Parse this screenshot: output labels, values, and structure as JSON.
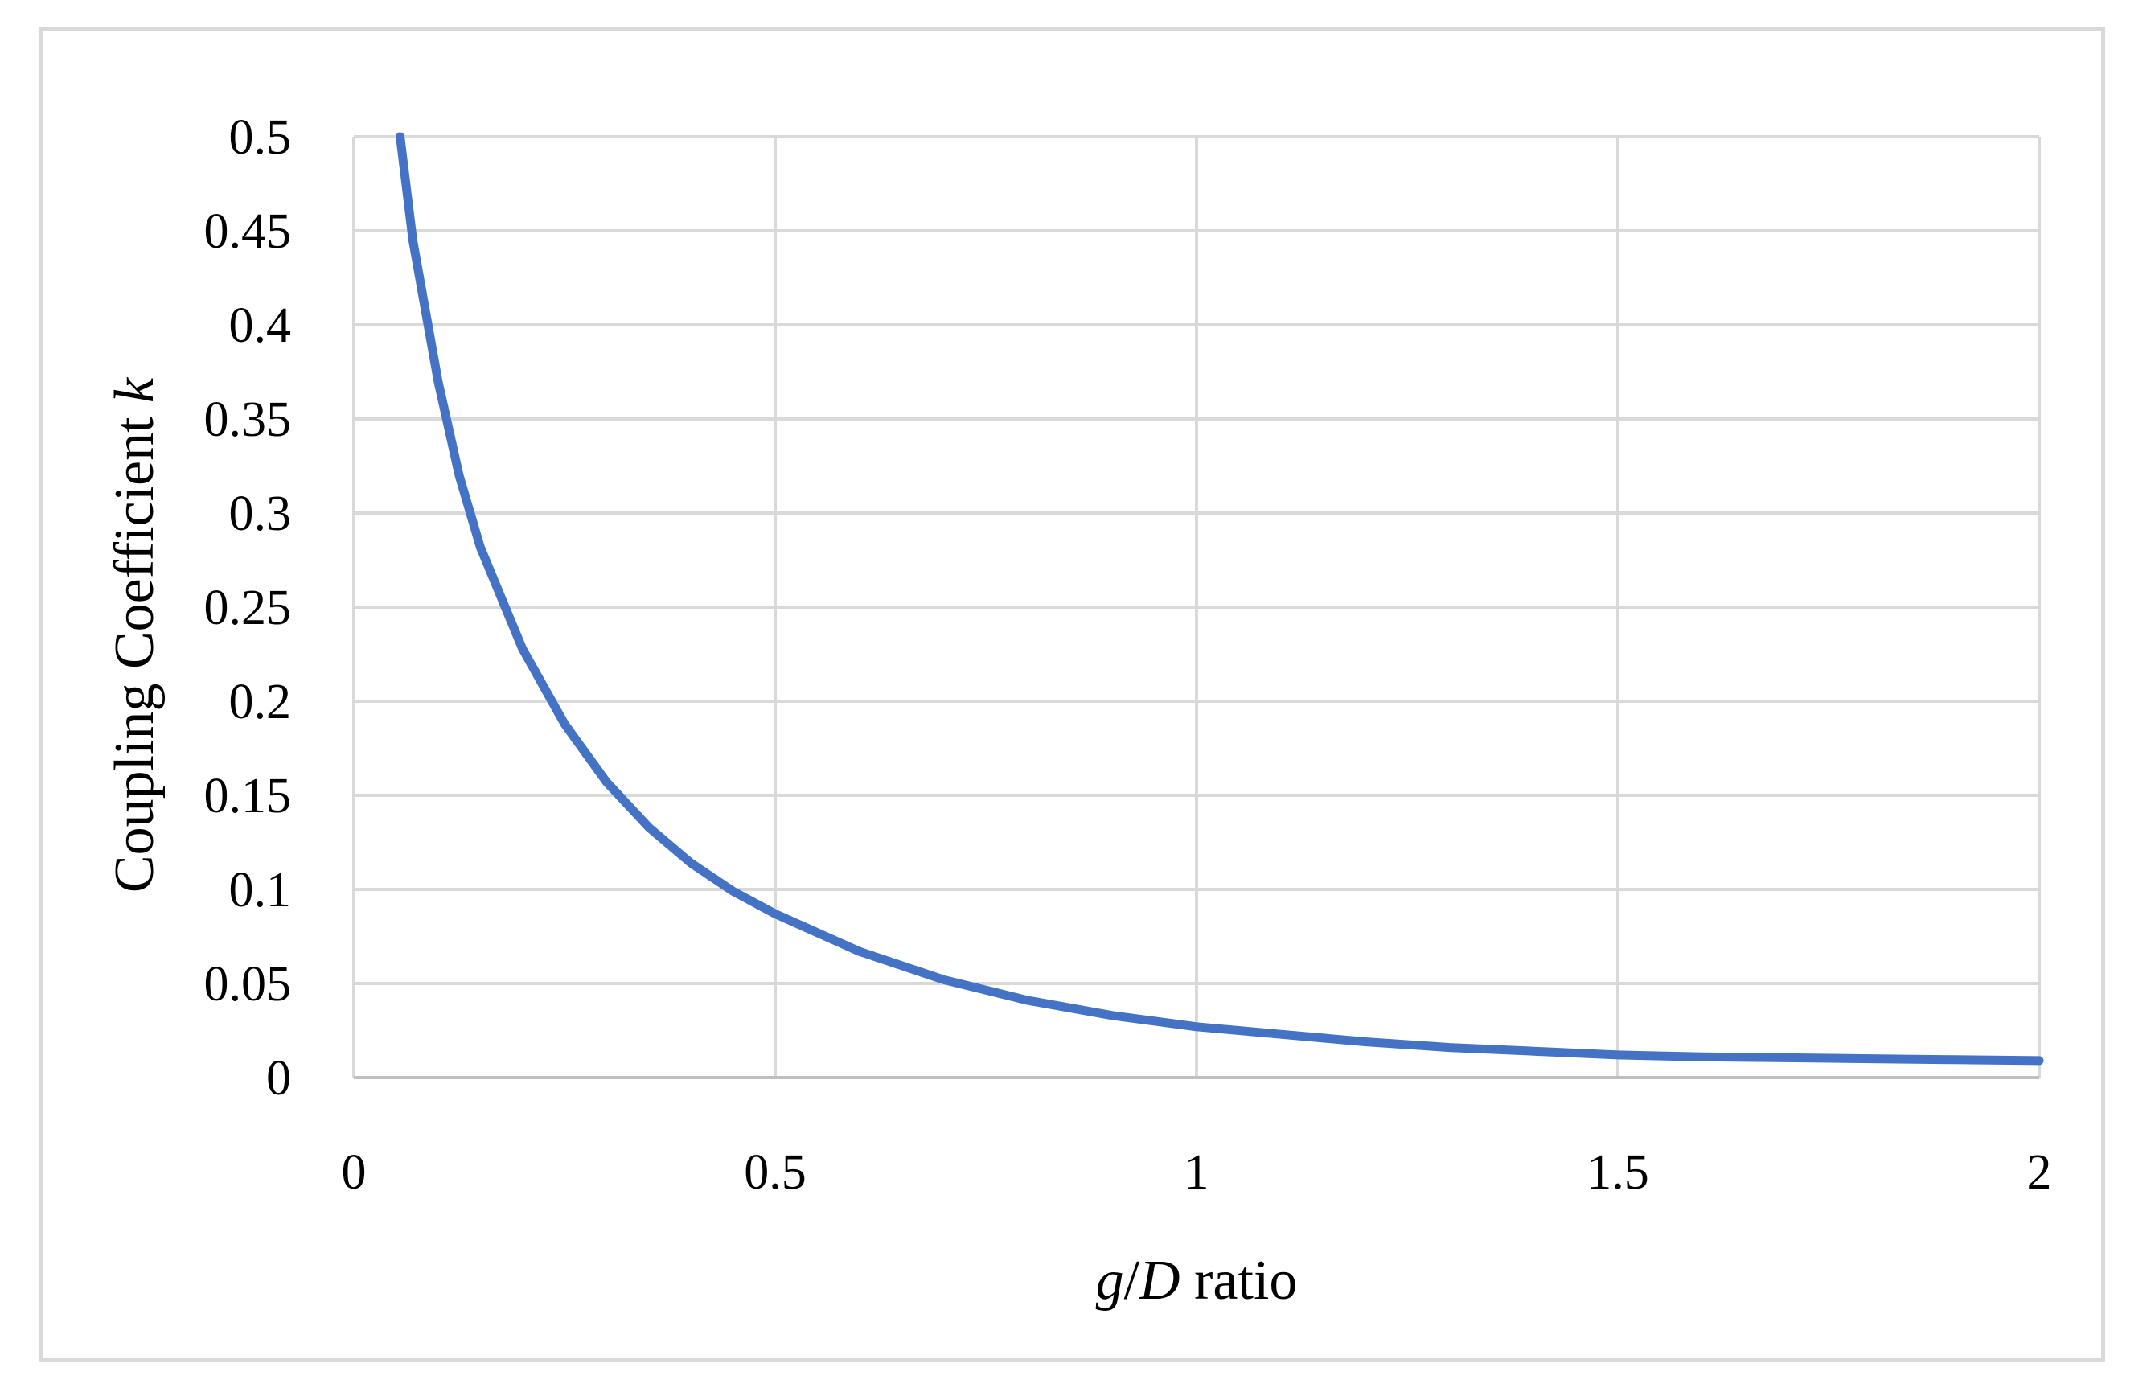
{
  "chart_data": {
    "type": "line",
    "title": "",
    "xlabel_parts": [
      {
        "text": "g",
        "italic": true
      },
      {
        "text": "/",
        "italic": false
      },
      {
        "text": "D",
        "italic": true
      },
      {
        "text": " ratio",
        "italic": false
      }
    ],
    "ylabel_parts": [
      {
        "text": "Coupling Coefficient ",
        "italic": false
      },
      {
        "text": "k",
        "italic": true
      }
    ],
    "xlim": [
      0,
      2
    ],
    "ylim": [
      0,
      0.5
    ],
    "xticks": [
      0,
      0.5,
      1,
      1.5,
      2
    ],
    "xtick_labels": [
      "0",
      "0.5",
      "1",
      "1.5",
      "2"
    ],
    "yticks": [
      0,
      0.05,
      0.1,
      0.15,
      0.2,
      0.25,
      0.3,
      0.35,
      0.4,
      0.45,
      0.5
    ],
    "ytick_labels": [
      "0",
      "0.05",
      "0.1",
      "0.15",
      "0.2",
      "0.25",
      "0.3",
      "0.35",
      "0.4",
      "0.45",
      "0.5"
    ],
    "grid": true,
    "legend": "none",
    "series": [
      {
        "color": "#4472c4",
        "x": [
          0.055,
          0.07,
          0.1,
          0.125,
          0.15,
          0.2,
          0.25,
          0.3,
          0.35,
          0.4,
          0.45,
          0.5,
          0.6,
          0.7,
          0.8,
          0.9,
          1.0,
          1.1,
          1.2,
          1.3,
          1.4,
          1.5,
          1.6,
          1.7,
          1.8,
          1.9,
          2.0
        ],
        "y": [
          0.5,
          0.445,
          0.37,
          0.32,
          0.282,
          0.228,
          0.188,
          0.157,
          0.133,
          0.114,
          0.099,
          0.087,
          0.067,
          0.052,
          0.041,
          0.033,
          0.027,
          0.023,
          0.019,
          0.016,
          0.014,
          0.012,
          0.011,
          0.0105,
          0.01,
          0.0095,
          0.009
        ]
      }
    ]
  }
}
